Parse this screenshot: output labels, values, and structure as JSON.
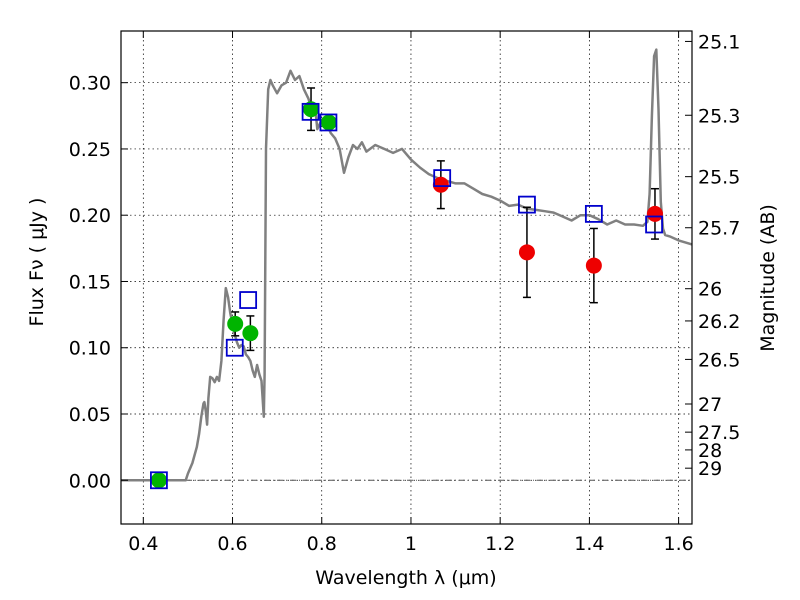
{
  "chart_data": {
    "type": "scatter",
    "xlabel": "Wavelength  λ (μm)",
    "ylabel": "Flux  Fν  ( μJy )",
    "y2label": "Magnitude (AB)",
    "xlim": [
      0.35,
      1.63
    ],
    "ylim": [
      -0.033,
      0.339
    ],
    "grid": true,
    "xticks": [
      {
        "v": 0.4,
        "label": "0.4"
      },
      {
        "v": 0.6,
        "label": "0.6"
      },
      {
        "v": 0.8,
        "label": "0.8"
      },
      {
        "v": 1.0,
        "label": "1"
      },
      {
        "v": 1.2,
        "label": "1.2"
      },
      {
        "v": 1.4,
        "label": "1.4"
      },
      {
        "v": 1.6,
        "label": "1.6"
      }
    ],
    "yticks": [
      {
        "v": 0.0,
        "label": "0.00"
      },
      {
        "v": 0.05,
        "label": "0.05"
      },
      {
        "v": 0.1,
        "label": "0.10"
      },
      {
        "v": 0.15,
        "label": "0.15"
      },
      {
        "v": 0.2,
        "label": "0.20"
      },
      {
        "v": 0.25,
        "label": "0.25"
      },
      {
        "v": 0.3,
        "label": "0.30"
      }
    ],
    "y2ticks": [
      {
        "mag": 25.1,
        "label": "25.1"
      },
      {
        "mag": 25.3,
        "label": "25.3"
      },
      {
        "mag": 25.5,
        "label": "25.5"
      },
      {
        "mag": 25.7,
        "label": "25.7"
      },
      {
        "mag": 26,
        "label": "26"
      },
      {
        "mag": 26.2,
        "label": "26.2"
      },
      {
        "mag": 26.5,
        "label": "26.5"
      },
      {
        "mag": 27,
        "label": "27"
      },
      {
        "mag": 27.5,
        "label": "27.5"
      },
      {
        "mag": 28,
        "label": "28"
      },
      {
        "mag": 29,
        "label": "29"
      }
    ],
    "colors": {
      "sed": "#808080",
      "model_box": "#0000cc",
      "green": "#00b400",
      "red": "#ee0000",
      "error": "#000000"
    },
    "sed_model": {
      "x": [
        0.35,
        0.495,
        0.5,
        0.51,
        0.52,
        0.525,
        0.53,
        0.535,
        0.537,
        0.54,
        0.543,
        0.546,
        0.55,
        0.555,
        0.56,
        0.565,
        0.57,
        0.575,
        0.58,
        0.585,
        0.59,
        0.595,
        0.6,
        0.605,
        0.61,
        0.615,
        0.62,
        0.625,
        0.63,
        0.635,
        0.64,
        0.645,
        0.65,
        0.655,
        0.66,
        0.665,
        0.67,
        0.672,
        0.675,
        0.68,
        0.685,
        0.69,
        0.7,
        0.71,
        0.72,
        0.73,
        0.74,
        0.75,
        0.76,
        0.77,
        0.78,
        0.785,
        0.79,
        0.8,
        0.81,
        0.82,
        0.83,
        0.84,
        0.85,
        0.86,
        0.87,
        0.88,
        0.89,
        0.9,
        0.92,
        0.94,
        0.96,
        0.98,
        1.0,
        1.02,
        1.04,
        1.06,
        1.08,
        1.1,
        1.12,
        1.14,
        1.16,
        1.18,
        1.2,
        1.22,
        1.24,
        1.26,
        1.28,
        1.3,
        1.32,
        1.34,
        1.36,
        1.38,
        1.4,
        1.42,
        1.44,
        1.46,
        1.48,
        1.5,
        1.52,
        1.53,
        1.535,
        1.54,
        1.545,
        1.55,
        1.555,
        1.56,
        1.565,
        1.57,
        1.58,
        1.6,
        1.63
      ],
      "y": [
        0.0,
        0.0,
        0.005,
        0.013,
        0.025,
        0.035,
        0.048,
        0.058,
        0.059,
        0.052,
        0.042,
        0.062,
        0.078,
        0.077,
        0.074,
        0.078,
        0.075,
        0.09,
        0.121,
        0.145,
        0.138,
        0.126,
        0.118,
        0.11,
        0.104,
        0.1,
        0.102,
        0.101,
        0.095,
        0.093,
        0.09,
        0.083,
        0.078,
        0.087,
        0.08,
        0.075,
        0.048,
        0.08,
        0.25,
        0.295,
        0.302,
        0.298,
        0.292,
        0.298,
        0.3,
        0.309,
        0.302,
        0.305,
        0.295,
        0.288,
        0.278,
        0.282,
        0.265,
        0.272,
        0.27,
        0.262,
        0.258,
        0.25,
        0.232,
        0.244,
        0.253,
        0.25,
        0.255,
        0.248,
        0.253,
        0.25,
        0.247,
        0.25,
        0.242,
        0.236,
        0.231,
        0.228,
        0.226,
        0.224,
        0.224,
        0.22,
        0.216,
        0.214,
        0.211,
        0.207,
        0.208,
        0.205,
        0.204,
        0.203,
        0.202,
        0.199,
        0.196,
        0.2,
        0.2,
        0.197,
        0.193,
        0.196,
        0.193,
        0.193,
        0.192,
        0.195,
        0.216,
        0.275,
        0.32,
        0.325,
        0.28,
        0.21,
        0.19,
        0.185,
        0.184,
        0.181,
        0.178
      ]
    },
    "series": [
      {
        "marker": "square",
        "x": [
          0.435,
          0.605,
          0.635,
          0.775,
          0.815,
          1.07,
          1.26,
          1.41,
          1.545
        ],
        "y": [
          0.0,
          0.1,
          0.136,
          0.278,
          0.27,
          0.228,
          0.208,
          0.201,
          0.193
        ]
      },
      {
        "marker": "circle",
        "x": [
          0.435,
          0.606,
          0.64,
          0.776,
          0.816
        ],
        "y": [
          0.0,
          0.118,
          0.111,
          0.28,
          0.27
        ],
        "yerr": [
          0.0,
          0.009,
          0.013,
          0.016,
          0.0
        ]
      },
      {
        "marker": "circle",
        "x": [
          1.067,
          1.26,
          1.41,
          1.547
        ],
        "y": [
          0.223,
          0.172,
          0.162,
          0.201
        ],
        "yerr": [
          0.018,
          0.034,
          0.028,
          0.019
        ]
      }
    ]
  }
}
